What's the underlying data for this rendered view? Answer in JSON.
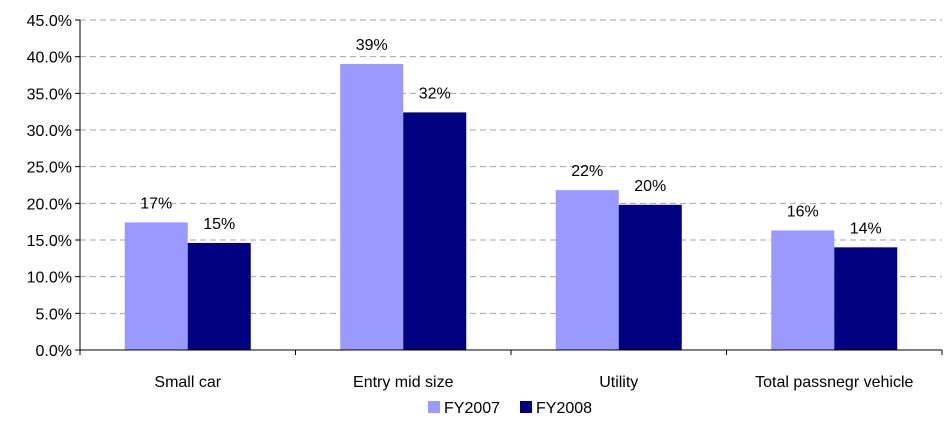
{
  "chart_data": {
    "type": "bar",
    "categories": [
      "Small car",
      "Entry mid size",
      "Utility",
      "Total passnegr vehicle"
    ],
    "series": [
      {
        "name": "FY2007",
        "color": "#9999ff",
        "values": [
          17.4,
          39.0,
          21.8,
          16.3
        ],
        "labels": [
          "17%",
          "39%",
          "22%",
          "16%"
        ]
      },
      {
        "name": "FY2008",
        "color": "#000080",
        "values": [
          14.6,
          32.4,
          19.8,
          14.0
        ],
        "labels": [
          "15%",
          "32%",
          "20%",
          "14%"
        ]
      }
    ],
    "ylim": [
      0,
      45
    ],
    "yticks": [
      "0.0%",
      "5.0%",
      "10.0%",
      "15.0%",
      "20.0%",
      "25.0%",
      "30.0%",
      "35.0%",
      "40.0%",
      "45.0%"
    ],
    "grid": true,
    "legend_position": "bottom"
  }
}
